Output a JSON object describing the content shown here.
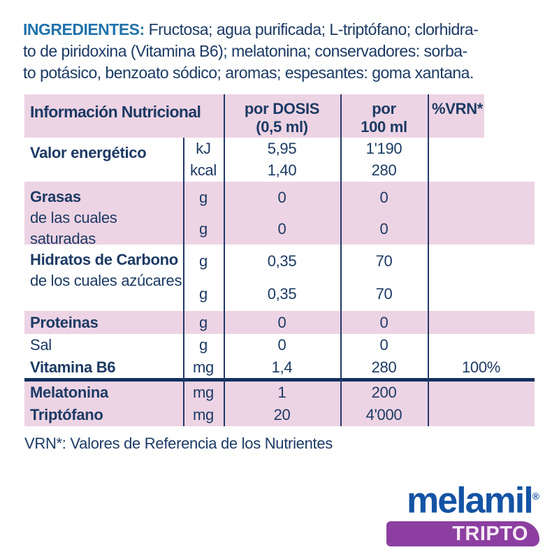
{
  "ingredients": {
    "label": "INGREDIENTES:",
    "line1": " Fructosa; agua purificada; L-triptófano; clorhidra-",
    "line2": "to de piridoxina (Vitamina B6); melatonina; conservadores: sorba-",
    "line3": "to potásico, benzoato sódico; aromas; espesantes: goma xantana."
  },
  "table": {
    "header": {
      "title": "Información Nutricional",
      "dose_l1": "por DOSIS",
      "dose_l2": "(0,5 ml)",
      "per100_l1": "por",
      "per100_l2": "100 ml",
      "vrn": "%VRN*"
    },
    "rows": [
      {
        "label": "Valor energético",
        "units": [
          "kJ",
          "kcal"
        ],
        "dose": [
          "5,95",
          "1,40"
        ],
        "per100": [
          "1'190",
          "280"
        ],
        "vrn": ""
      },
      {
        "label": "Grasas",
        "sublabel": "de las cuales saturadas",
        "units": [
          "g",
          "g"
        ],
        "dose": [
          "0",
          "0"
        ],
        "per100": [
          "0",
          "0"
        ],
        "vrn": ""
      },
      {
        "label": "Hidratos de Carbono",
        "sublabel": "de los cuales azúcares",
        "units": [
          "g",
          "g"
        ],
        "dose": [
          "0,35",
          "0,35"
        ],
        "per100": [
          "70",
          "70"
        ],
        "vrn": ""
      },
      {
        "label": "Proteinas",
        "units": [
          "g"
        ],
        "dose": [
          "0"
        ],
        "per100": [
          "0"
        ],
        "vrn": ""
      },
      {
        "label": "Sal",
        "units": [
          "g"
        ],
        "dose": [
          "0"
        ],
        "per100": [
          "0"
        ],
        "vrn": ""
      },
      {
        "label": "Vitamina B6",
        "units": [
          "mg"
        ],
        "dose": [
          "1,4"
        ],
        "per100": [
          "280"
        ],
        "vrn": "100%"
      },
      {
        "label": "Melatonina",
        "label2": "Triptófano",
        "units": [
          "mg",
          "mg"
        ],
        "dose": [
          "1",
          "20"
        ],
        "per100": [
          "200",
          "4'000"
        ],
        "vrn": ""
      }
    ]
  },
  "footnote": "VRN*: Valores de Referencia de los Nutrientes",
  "logo": {
    "brand": "melamil",
    "registered": "®",
    "variant": "TRIPTO"
  },
  "colors": {
    "row_pink": "#edd4e4",
    "text_navy": "#1c3a64",
    "line_navy": "#23386a",
    "ingredients_blue": "#2173ab",
    "brand_blue": "#1453a4",
    "banner_purple": "#8c3fa0",
    "banner_text": "#f7ebf5"
  }
}
